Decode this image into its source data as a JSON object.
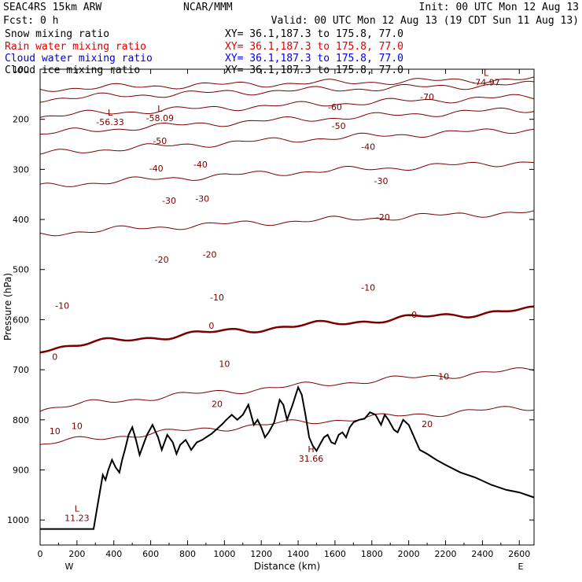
{
  "header": {
    "model": "SEAC4RS 15km ARW",
    "org": "NCAR/MMM",
    "init": "Init: 00 UTC Mon 12 Aug 13",
    "fcst": "Fcst:    0 h",
    "valid": "Valid: 00 UTC Mon 12 Aug 13 (19 CDT Sun 11 Aug 13)",
    "fields": [
      {
        "name": "Snow mixing ratio",
        "xy": "XY=  36.1,187.3 to 175.8, 77.0",
        "color": "#000000"
      },
      {
        "name": "Rain water mixing ratio",
        "xy": "XY=  36.1,187.3 to 175.8, 77.0",
        "color": "#e00000"
      },
      {
        "name": "Cloud water mixing ratio",
        "xy": "XY=  36.1,187.3 to 175.8, 77.0",
        "color": "#0000e0"
      },
      {
        "name": "Cloud ice mixing ratio",
        "xy": "XY=  36.1,187.3 to 175.8, 77.0",
        "color": "#000000"
      }
    ]
  },
  "chart_data": {
    "type": "line",
    "xlabel": "Distance (km)",
    "ylabel": "Pressure (hPa)",
    "xlim": [
      0,
      2680
    ],
    "ylim": [
      1050,
      100
    ],
    "x_ticks": [
      "0",
      "200",
      "400",
      "600",
      "800",
      "1000",
      "1200",
      "1400",
      "1600",
      "1800",
      "2000",
      "2200",
      "2400",
      "2600"
    ],
    "y_ticks": [
      "100",
      "200",
      "300",
      "400",
      "500",
      "600",
      "700",
      "800",
      "900",
      "1000"
    ],
    "x_end_labels": {
      "left": "W",
      "right": "E"
    },
    "contour_color": "#7a0000",
    "isotherms": [
      {
        "t": -70,
        "p0": 140,
        "p1": 120
      },
      {
        "t": -60,
        "p0": 160,
        "p1": 130
      },
      {
        "t": -50,
        "p0": 195,
        "p1": 155
      },
      {
        "t": -40,
        "p0": 230,
        "p1": 180
      },
      {
        "t": -30,
        "p0": 270,
        "p1": 220
      },
      {
        "t": -20,
        "p0": 335,
        "p1": 285
      },
      {
        "t": -10,
        "p0": 430,
        "p1": 385
      },
      {
        "t": 0,
        "p0": 660,
        "p1": 580,
        "bold": true
      },
      {
        "t": 10,
        "p0": 780,
        "p1": 700
      },
      {
        "t": 20,
        "p0": 850,
        "p1": 775
      }
    ],
    "contour_labels": [
      {
        "text": "-70",
        "x": 2100,
        "p": 155
      },
      {
        "text": "-60",
        "x": 1600,
        "p": 175
      },
      {
        "text": "-50",
        "x": 1620,
        "p": 213
      },
      {
        "text": "-50",
        "x": 650,
        "p": 243
      },
      {
        "text": "-40",
        "x": 1780,
        "p": 255
      },
      {
        "text": "-40",
        "x": 870,
        "p": 290
      },
      {
        "text": "-40",
        "x": 630,
        "p": 298
      },
      {
        "text": "-30",
        "x": 1850,
        "p": 323
      },
      {
        "text": "-30",
        "x": 880,
        "p": 358
      },
      {
        "text": "-30",
        "x": 700,
        "p": 362
      },
      {
        "text": "-20",
        "x": 1860,
        "p": 395
      },
      {
        "text": "-20",
        "x": 920,
        "p": 470
      },
      {
        "text": "-20",
        "x": 660,
        "p": 480
      },
      {
        "text": "-10",
        "x": 1780,
        "p": 536
      },
      {
        "text": "-10",
        "x": 960,
        "p": 555
      },
      {
        "text": "-10",
        "x": 120,
        "p": 572
      },
      {
        "text": "0",
        "x": 2030,
        "p": 590
      },
      {
        "text": "0",
        "x": 930,
        "p": 612
      },
      {
        "text": "0",
        "x": 80,
        "p": 674
      },
      {
        "text": "10",
        "x": 1000,
        "p": 688
      },
      {
        "text": "10",
        "x": 2190,
        "p": 713
      },
      {
        "text": "20",
        "x": 960,
        "p": 768
      },
      {
        "text": "20",
        "x": 2100,
        "p": 808
      },
      {
        "text": "10",
        "x": 200,
        "p": 812
      },
      {
        "text": "10",
        "x": 80,
        "p": 822
      }
    ],
    "extrema": [
      {
        "type": "L",
        "x": 380,
        "p": 193,
        "value": "-56.33"
      },
      {
        "type": "L",
        "x": 650,
        "p": 185,
        "value": "-58.09"
      },
      {
        "type": "L",
        "x": 2420,
        "p": 113,
        "value": "-74.97"
      },
      {
        "type": "H",
        "x": 1470,
        "p": 865,
        "value": "31.66"
      },
      {
        "type": "L",
        "x": 200,
        "p": 983,
        "value": "11.23"
      }
    ],
    "terrain": [
      [
        0,
        1018
      ],
      [
        290,
        1018
      ],
      [
        310,
        975
      ],
      [
        340,
        910
      ],
      [
        355,
        920
      ],
      [
        370,
        900
      ],
      [
        390,
        880
      ],
      [
        410,
        895
      ],
      [
        430,
        905
      ],
      [
        445,
        880
      ],
      [
        460,
        860
      ],
      [
        480,
        830
      ],
      [
        500,
        815
      ],
      [
        520,
        840
      ],
      [
        540,
        870
      ],
      [
        560,
        850
      ],
      [
        580,
        830
      ],
      [
        610,
        810
      ],
      [
        640,
        835
      ],
      [
        660,
        860
      ],
      [
        690,
        830
      ],
      [
        720,
        845
      ],
      [
        740,
        868
      ],
      [
        760,
        850
      ],
      [
        790,
        840
      ],
      [
        820,
        860
      ],
      [
        850,
        845
      ],
      [
        880,
        840
      ],
      [
        900,
        835
      ],
      [
        930,
        828
      ],
      [
        960,
        818
      ],
      [
        990,
        808
      ],
      [
        1010,
        800
      ],
      [
        1040,
        790
      ],
      [
        1070,
        800
      ],
      [
        1100,
        790
      ],
      [
        1130,
        770
      ],
      [
        1160,
        810
      ],
      [
        1180,
        800
      ],
      [
        1200,
        815
      ],
      [
        1220,
        835
      ],
      [
        1240,
        825
      ],
      [
        1270,
        805
      ],
      [
        1300,
        760
      ],
      [
        1320,
        770
      ],
      [
        1340,
        800
      ],
      [
        1370,
        770
      ],
      [
        1400,
        735
      ],
      [
        1420,
        750
      ],
      [
        1440,
        790
      ],
      [
        1460,
        835
      ],
      [
        1480,
        852
      ],
      [
        1500,
        862
      ],
      [
        1520,
        848
      ],
      [
        1540,
        835
      ],
      [
        1560,
        830
      ],
      [
        1580,
        845
      ],
      [
        1600,
        848
      ],
      [
        1620,
        830
      ],
      [
        1640,
        825
      ],
      [
        1660,
        835
      ],
      [
        1680,
        815
      ],
      [
        1700,
        805
      ],
      [
        1730,
        800
      ],
      [
        1760,
        798
      ],
      [
        1790,
        785
      ],
      [
        1820,
        790
      ],
      [
        1850,
        810
      ],
      [
        1870,
        790
      ],
      [
        1890,
        800
      ],
      [
        1920,
        820
      ],
      [
        1940,
        825
      ],
      [
        1970,
        800
      ],
      [
        2000,
        810
      ],
      [
        2030,
        835
      ],
      [
        2060,
        860
      ],
      [
        2100,
        868
      ],
      [
        2150,
        880
      ],
      [
        2200,
        890
      ],
      [
        2280,
        905
      ],
      [
        2360,
        915
      ],
      [
        2450,
        930
      ],
      [
        2530,
        940
      ],
      [
        2600,
        945
      ],
      [
        2680,
        955
      ]
    ]
  }
}
